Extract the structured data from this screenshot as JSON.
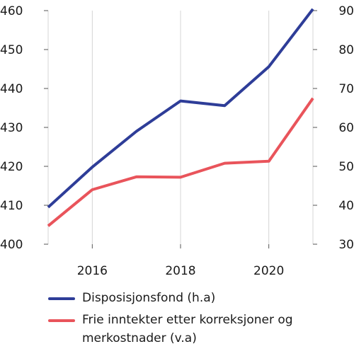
{
  "chart_data": {
    "type": "line",
    "title": "",
    "xlabel": "",
    "x": [
      2015,
      2016,
      2017,
      2018,
      2019,
      2020,
      2021
    ],
    "xticks": [
      "2016",
      "2018",
      "2020"
    ],
    "xlim": [
      2015,
      2021
    ],
    "y_left": {
      "ylim": [
        400,
        460
      ],
      "ticks": [
        "400",
        "410",
        "420",
        "430",
        "440",
        "450",
        "460"
      ]
    },
    "y_right": {
      "ylim": [
        30,
        90
      ],
      "ticks": [
        "30",
        "40",
        "50",
        "60",
        "70",
        "80",
        "90"
      ]
    },
    "grid": "vertical",
    "legend_position": "bottom",
    "series": [
      {
        "name": "Disposisjonsfond (h.a)",
        "axis": "right",
        "color": "#2e3d98",
        "values": [
          39.5,
          49.8,
          59,
          66.8,
          65.6,
          75.6,
          90.4
        ]
      },
      {
        "name": "Frie inntekter etter korreksjoner og merkostnader (v.a)",
        "axis": "left",
        "color": "#e9545b",
        "values": [
          404.7,
          414,
          417.3,
          417.2,
          420.8,
          421.3,
          437.5
        ]
      }
    ]
  }
}
